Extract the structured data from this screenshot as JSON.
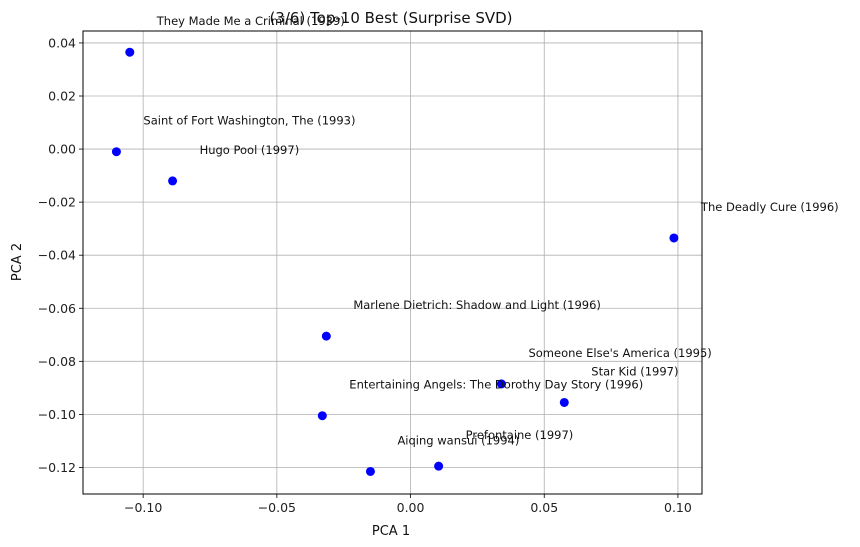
{
  "chart_data": {
    "type": "scatter",
    "title": "(3/6) Top-10 Best (Surprise SVD)",
    "xlabel": "PCA 1",
    "ylabel": "PCA 2",
    "xlim": [
      -0.1225,
      0.109
    ],
    "ylim": [
      -0.13,
      0.0445
    ],
    "xticks": [
      -0.1,
      -0.05,
      0.0,
      0.05,
      0.1
    ],
    "xtick_labels": [
      "−0.10",
      "−0.05",
      "0.00",
      "0.05",
      "0.10"
    ],
    "yticks": [
      -0.12,
      -0.1,
      -0.08,
      -0.06,
      -0.04,
      -0.02,
      0.0,
      0.02,
      0.04
    ],
    "ytick_labels": [
      "−0.12",
      "−0.10",
      "−0.08",
      "−0.06",
      "−0.04",
      "−0.02",
      "0.00",
      "0.02",
      "0.04"
    ],
    "grid": true,
    "marker_color": "#0000ff",
    "points": [
      {
        "label": "They Made Me a Criminal (1939)",
        "x": -0.105,
        "y": 0.0365
      },
      {
        "label": "Saint of Fort Washington, The (1993)",
        "x": -0.11,
        "y": -0.001
      },
      {
        "label": "Hugo Pool (1997)",
        "x": -0.089,
        "y": -0.012
      },
      {
        "label": "The Deadly Cure (1996)",
        "x": 0.0985,
        "y": -0.0335
      },
      {
        "label": "Marlene Dietrich: Shadow and Light (1996)",
        "x": -0.0315,
        "y": -0.0705
      },
      {
        "label": "Someone Else's America (1995)",
        "x": 0.034,
        "y": -0.0885
      },
      {
        "label": "Star Kid (1997)",
        "x": 0.0575,
        "y": -0.0955
      },
      {
        "label": "Entertaining Angels: The Dorothy Day Story (1996)",
        "x": -0.033,
        "y": -0.1005
      },
      {
        "label": "Prefontaine (1997)",
        "x": 0.0105,
        "y": -0.1195
      },
      {
        "label": "Aiqing wansui (1994)",
        "x": -0.015,
        "y": -0.1215
      }
    ]
  }
}
